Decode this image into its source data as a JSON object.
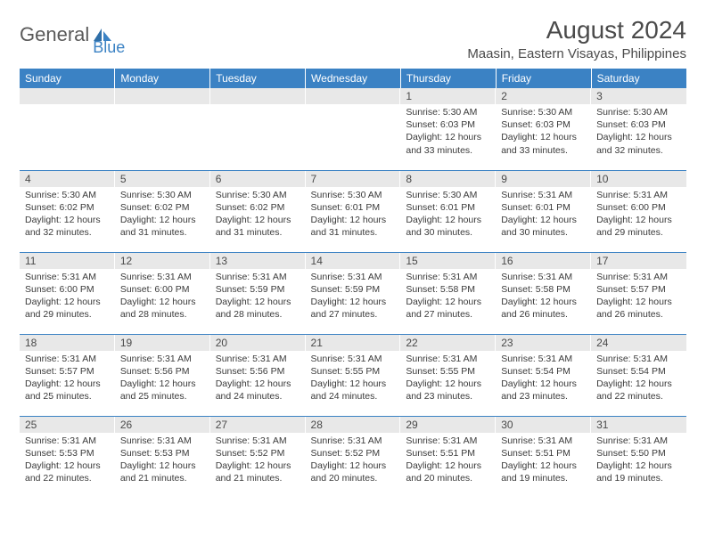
{
  "logo": {
    "text1": "General",
    "text2": "Blue"
  },
  "title": "August 2024",
  "location": "Maasin, Eastern Visayas, Philippines",
  "colors": {
    "header_bg": "#3b82c4",
    "header_text": "#ffffff",
    "daynum_bg": "#e8e8e8",
    "text": "#3a3a3a",
    "border": "#3b82c4"
  },
  "fonts": {
    "title_size": 28,
    "location_size": 15,
    "th_size": 12,
    "cell_size": 10.5
  },
  "weekdays": [
    "Sunday",
    "Monday",
    "Tuesday",
    "Wednesday",
    "Thursday",
    "Friday",
    "Saturday"
  ],
  "weeks": [
    [
      null,
      null,
      null,
      null,
      {
        "n": "1",
        "sr": "5:30 AM",
        "ss": "6:03 PM",
        "dl": "12 hours and 33 minutes."
      },
      {
        "n": "2",
        "sr": "5:30 AM",
        "ss": "6:03 PM",
        "dl": "12 hours and 33 minutes."
      },
      {
        "n": "3",
        "sr": "5:30 AM",
        "ss": "6:03 PM",
        "dl": "12 hours and 32 minutes."
      }
    ],
    [
      {
        "n": "4",
        "sr": "5:30 AM",
        "ss": "6:02 PM",
        "dl": "12 hours and 32 minutes."
      },
      {
        "n": "5",
        "sr": "5:30 AM",
        "ss": "6:02 PM",
        "dl": "12 hours and 31 minutes."
      },
      {
        "n": "6",
        "sr": "5:30 AM",
        "ss": "6:02 PM",
        "dl": "12 hours and 31 minutes."
      },
      {
        "n": "7",
        "sr": "5:30 AM",
        "ss": "6:01 PM",
        "dl": "12 hours and 31 minutes."
      },
      {
        "n": "8",
        "sr": "5:30 AM",
        "ss": "6:01 PM",
        "dl": "12 hours and 30 minutes."
      },
      {
        "n": "9",
        "sr": "5:31 AM",
        "ss": "6:01 PM",
        "dl": "12 hours and 30 minutes."
      },
      {
        "n": "10",
        "sr": "5:31 AM",
        "ss": "6:00 PM",
        "dl": "12 hours and 29 minutes."
      }
    ],
    [
      {
        "n": "11",
        "sr": "5:31 AM",
        "ss": "6:00 PM",
        "dl": "12 hours and 29 minutes."
      },
      {
        "n": "12",
        "sr": "5:31 AM",
        "ss": "6:00 PM",
        "dl": "12 hours and 28 minutes."
      },
      {
        "n": "13",
        "sr": "5:31 AM",
        "ss": "5:59 PM",
        "dl": "12 hours and 28 minutes."
      },
      {
        "n": "14",
        "sr": "5:31 AM",
        "ss": "5:59 PM",
        "dl": "12 hours and 27 minutes."
      },
      {
        "n": "15",
        "sr": "5:31 AM",
        "ss": "5:58 PM",
        "dl": "12 hours and 27 minutes."
      },
      {
        "n": "16",
        "sr": "5:31 AM",
        "ss": "5:58 PM",
        "dl": "12 hours and 26 minutes."
      },
      {
        "n": "17",
        "sr": "5:31 AM",
        "ss": "5:57 PM",
        "dl": "12 hours and 26 minutes."
      }
    ],
    [
      {
        "n": "18",
        "sr": "5:31 AM",
        "ss": "5:57 PM",
        "dl": "12 hours and 25 minutes."
      },
      {
        "n": "19",
        "sr": "5:31 AM",
        "ss": "5:56 PM",
        "dl": "12 hours and 25 minutes."
      },
      {
        "n": "20",
        "sr": "5:31 AM",
        "ss": "5:56 PM",
        "dl": "12 hours and 24 minutes."
      },
      {
        "n": "21",
        "sr": "5:31 AM",
        "ss": "5:55 PM",
        "dl": "12 hours and 24 minutes."
      },
      {
        "n": "22",
        "sr": "5:31 AM",
        "ss": "5:55 PM",
        "dl": "12 hours and 23 minutes."
      },
      {
        "n": "23",
        "sr": "5:31 AM",
        "ss": "5:54 PM",
        "dl": "12 hours and 23 minutes."
      },
      {
        "n": "24",
        "sr": "5:31 AM",
        "ss": "5:54 PM",
        "dl": "12 hours and 22 minutes."
      }
    ],
    [
      {
        "n": "25",
        "sr": "5:31 AM",
        "ss": "5:53 PM",
        "dl": "12 hours and 22 minutes."
      },
      {
        "n": "26",
        "sr": "5:31 AM",
        "ss": "5:53 PM",
        "dl": "12 hours and 21 minutes."
      },
      {
        "n": "27",
        "sr": "5:31 AM",
        "ss": "5:52 PM",
        "dl": "12 hours and 21 minutes."
      },
      {
        "n": "28",
        "sr": "5:31 AM",
        "ss": "5:52 PM",
        "dl": "12 hours and 20 minutes."
      },
      {
        "n": "29",
        "sr": "5:31 AM",
        "ss": "5:51 PM",
        "dl": "12 hours and 20 minutes."
      },
      {
        "n": "30",
        "sr": "5:31 AM",
        "ss": "5:51 PM",
        "dl": "12 hours and 19 minutes."
      },
      {
        "n": "31",
        "sr": "5:31 AM",
        "ss": "5:50 PM",
        "dl": "12 hours and 19 minutes."
      }
    ]
  ],
  "labels": {
    "sunrise": "Sunrise: ",
    "sunset": "Sunset: ",
    "daylight": "Daylight: "
  }
}
